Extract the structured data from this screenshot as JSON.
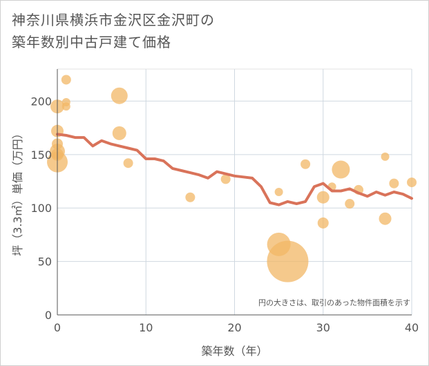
{
  "title_line1": "神奈川県横浜市金沢区金沢町の",
  "title_line2": "築年数別中古戸建て価格",
  "chart_data": {
    "type": "scatter",
    "xlabel": "築年数（年）",
    "ylabel": "坪（3.3㎡）単価（万円）",
    "xlim": [
      0,
      40
    ],
    "ylim": [
      0,
      230
    ],
    "x_ticks": [
      "0",
      "10",
      "20",
      "30",
      "40"
    ],
    "y_ticks": [
      "0",
      "50",
      "100",
      "150",
      "200"
    ],
    "grid": true,
    "note": "円の大きさは、取引のあった物件面積を示す",
    "bubble_color": "#f2b766",
    "line_color": "#d9735a",
    "points": [
      {
        "x": 0,
        "y": 195,
        "s": 10
      },
      {
        "x": 0,
        "y": 172,
        "s": 9
      },
      {
        "x": 0,
        "y": 160,
        "s": 8
      },
      {
        "x": 0,
        "y": 153,
        "s": 11
      },
      {
        "x": 0,
        "y": 150,
        "s": 9
      },
      {
        "x": 0,
        "y": 143,
        "s": 15
      },
      {
        "x": 1,
        "y": 220,
        "s": 7
      },
      {
        "x": 1,
        "y": 199,
        "s": 6
      },
      {
        "x": 1,
        "y": 195,
        "s": 6
      },
      {
        "x": 7,
        "y": 205,
        "s": 12
      },
      {
        "x": 7,
        "y": 170,
        "s": 10
      },
      {
        "x": 8,
        "y": 142,
        "s": 7
      },
      {
        "x": 15,
        "y": 110,
        "s": 7
      },
      {
        "x": 19,
        "y": 127,
        "s": 7
      },
      {
        "x": 25,
        "y": 115,
        "s": 6
      },
      {
        "x": 25,
        "y": 66,
        "s": 17
      },
      {
        "x": 26,
        "y": 50,
        "s": 30
      },
      {
        "x": 28,
        "y": 141,
        "s": 7
      },
      {
        "x": 30,
        "y": 110,
        "s": 9
      },
      {
        "x": 30,
        "y": 86,
        "s": 8
      },
      {
        "x": 31,
        "y": 120,
        "s": 6
      },
      {
        "x": 32,
        "y": 136,
        "s": 13
      },
      {
        "x": 33,
        "y": 104,
        "s": 7
      },
      {
        "x": 34,
        "y": 117,
        "s": 7
      },
      {
        "x": 37,
        "y": 148,
        "s": 6
      },
      {
        "x": 37,
        "y": 90,
        "s": 9
      },
      {
        "x": 38,
        "y": 123,
        "s": 7
      },
      {
        "x": 40,
        "y": 124,
        "s": 7
      }
    ],
    "trend": {
      "x": [
        0,
        1,
        2,
        3,
        4,
        5,
        6,
        7,
        8,
        9,
        10,
        11,
        12,
        13,
        14,
        15,
        16,
        17,
        18,
        19,
        20,
        21,
        22,
        23,
        24,
        25,
        26,
        27,
        28,
        29,
        30,
        31,
        32,
        33,
        34,
        35,
        36,
        37,
        38,
        39,
        40
      ],
      "y": [
        169,
        168,
        166,
        166,
        158,
        163,
        160,
        158,
        156,
        154,
        146,
        146,
        144,
        137,
        135,
        133,
        131,
        128,
        134,
        132,
        130,
        129,
        128,
        120,
        105,
        103,
        106,
        104,
        106,
        120,
        123,
        116,
        116,
        118,
        114,
        111,
        115,
        112,
        115,
        113,
        109
      ]
    }
  }
}
